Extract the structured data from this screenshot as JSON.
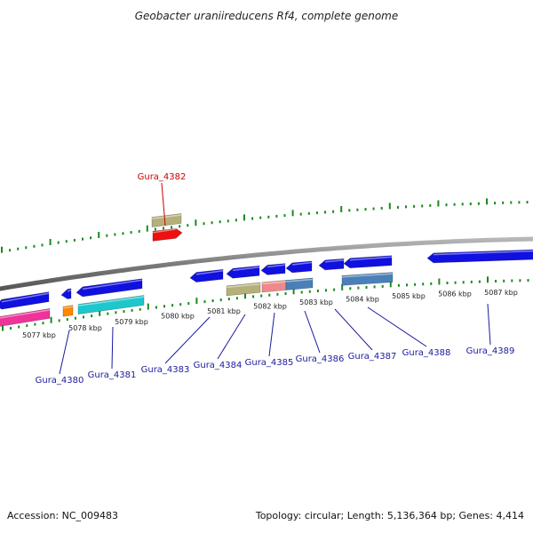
{
  "title": "Geobacter uraniireducens Rf4, complete genome",
  "footer": {
    "accession": "Accession: NC_009483",
    "summary": "Topology: circular; Length: 5,136,364 bp; Genes: 4,414"
  },
  "colors": {
    "backbone": "#8a8a8a",
    "tick": "#1a8a1a",
    "label_default": "#1a1aa0",
    "label_highlight": "#cc0000",
    "blue": "#1010e0",
    "red": "#ee1111",
    "khaki": "#b5b07a",
    "pink": "#ee3399",
    "orange": "#ff8800",
    "cyan": "#1cc8cc",
    "salmon": "#f08a8a",
    "steelblue": "#4a80b8"
  },
  "scale": {
    "labels": [
      "5077 kbp",
      "5078 kbp",
      "5079 kbp",
      "5080 kbp",
      "5081 kbp",
      "5082 kbp",
      "5083 kbp",
      "5084 kbp",
      "5085 kbp",
      "5086 kbp",
      "5087 kbp"
    ]
  },
  "genes": [
    {
      "label": "Gura_4380",
      "highlight": false
    },
    {
      "label": "Gura_4381",
      "highlight": false
    },
    {
      "label": "Gura_4382",
      "highlight": true
    },
    {
      "label": "Gura_4383",
      "highlight": false
    },
    {
      "label": "Gura_4384",
      "highlight": false
    },
    {
      "label": "Gura_4385",
      "highlight": false
    },
    {
      "label": "Gura_4386",
      "highlight": false
    },
    {
      "label": "Gura_4387",
      "highlight": false
    },
    {
      "label": "Gura_4388",
      "highlight": false
    },
    {
      "label": "Gura_4389",
      "highlight": false
    }
  ],
  "features": [
    {
      "color": "blue",
      "strand": "reverse",
      "track": "inner1"
    },
    {
      "color": "pink",
      "strand": "none",
      "track": "inner2"
    },
    {
      "color": "blue",
      "strand": "reverse",
      "track": "inner1"
    },
    {
      "color": "orange",
      "strand": "none",
      "track": "inner2"
    },
    {
      "color": "blue",
      "strand": "reverse",
      "track": "inner1"
    },
    {
      "color": "cyan",
      "strand": "none",
      "track": "inner2"
    },
    {
      "color": "red",
      "strand": "forward",
      "track": "outer1"
    },
    {
      "color": "khaki",
      "strand": "none",
      "track": "outer2"
    },
    {
      "color": "blue",
      "strand": "reverse",
      "track": "inner1"
    },
    {
      "color": "blue",
      "strand": "reverse",
      "track": "inner1"
    },
    {
      "color": "khaki",
      "strand": "none",
      "track": "inner2"
    },
    {
      "color": "blue",
      "strand": "reverse",
      "track": "inner1"
    },
    {
      "color": "salmon",
      "strand": "none",
      "track": "inner2"
    },
    {
      "color": "blue",
      "strand": "reverse",
      "track": "inner1"
    },
    {
      "color": "steelblue",
      "strand": "none",
      "track": "inner2"
    },
    {
      "color": "blue",
      "strand": "reverse",
      "track": "inner1"
    },
    {
      "color": "blue",
      "strand": "reverse",
      "track": "inner1"
    },
    {
      "color": "steelblue",
      "strand": "none",
      "track": "inner2"
    },
    {
      "color": "blue",
      "strand": "reverse",
      "track": "inner1"
    }
  ]
}
